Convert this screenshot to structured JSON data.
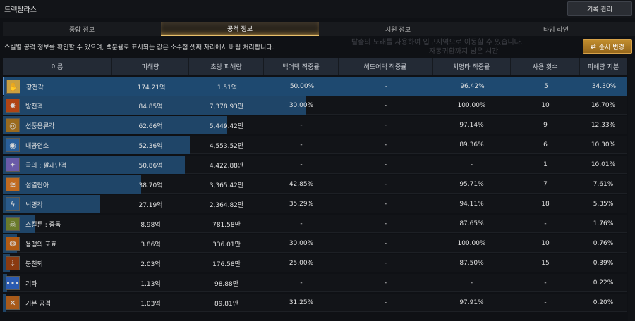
{
  "window": {
    "title": "드렉탈라스",
    "record_button": "기록 관리"
  },
  "tabs": [
    {
      "label": "종합 정보",
      "active": false
    },
    {
      "label": "공격 정보",
      "active": true
    },
    {
      "label": "지원 정보",
      "active": false
    },
    {
      "label": "타임 라인",
      "active": false
    }
  ],
  "info_text": "스킬별 공격 정보를 확인할 수 있으며, 백분율로 표시되는 값은 소수점 셋째 자리에서 버림 처리합니다.",
  "order_button": {
    "label": "순서 변경",
    "icon": "swap-icon"
  },
  "ghost_text": [
    "탈출의 노래를 사용하여 입구지역으로 이동할 수 있습니다.",
    "자동귀환까지 남은 시간"
  ],
  "columns": [
    "이름",
    "피해량",
    "초당 피해량",
    "백어택 적중률",
    "헤드어택 적중률",
    "치명타 적중률",
    "사용 횟수",
    "피해량 지분"
  ],
  "colors": {
    "bar": "#1f4568",
    "highlight_border": "#5c8fcc",
    "accent_gold": "#c08c2d",
    "tab_active_glow": "#e8c06a"
  },
  "rows": [
    {
      "name": "창천각",
      "damage": "174.21억",
      "dps": "1.51억",
      "back": "50.00%",
      "head": "-",
      "crit": "96.42%",
      "uses": "5",
      "share": "34.30%",
      "share_value": 34.3,
      "icon": "kick-icon",
      "icon_bg": "#caa040",
      "icon_glyph": "✋"
    },
    {
      "name": "방천격",
      "damage": "84.85억",
      "dps": "7,378.93만",
      "back": "30.00%",
      "head": "-",
      "crit": "100.00%",
      "uses": "10",
      "share": "16.70%",
      "share_value": 16.7,
      "icon": "fire-strike-icon",
      "icon_bg": "#b04414",
      "icon_glyph": "✸"
    },
    {
      "name": "선풍용류각",
      "damage": "62.66억",
      "dps": "5,449.42만",
      "back": "-",
      "head": "-",
      "crit": "97.14%",
      "uses": "9",
      "share": "12.33%",
      "share_value": 12.33,
      "icon": "whirlwind-icon",
      "icon_bg": "#9a6a1e",
      "icon_glyph": "◎"
    },
    {
      "name": "내공연소",
      "damage": "52.36억",
      "dps": "4,553.52만",
      "back": "-",
      "head": "-",
      "crit": "89.36%",
      "uses": "6",
      "share": "10.30%",
      "share_value": 10.3,
      "icon": "spiral-icon",
      "icon_bg": "#2a5f9a",
      "icon_glyph": "◉"
    },
    {
      "name": "극의 : 팔괘난격",
      "damage": "50.86억",
      "dps": "4,422.88만",
      "back": "-",
      "head": "-",
      "crit": "-",
      "uses": "1",
      "share": "10.01%",
      "share_value": 10.01,
      "icon": "barrage-icon",
      "icon_bg": "#6a5aa8",
      "icon_glyph": "✦"
    },
    {
      "name": "섬열란아",
      "damage": "38.70억",
      "dps": "3,365.42만",
      "back": "42.85%",
      "head": "-",
      "crit": "95.71%",
      "uses": "7",
      "share": "7.61%",
      "share_value": 7.61,
      "icon": "claw-icon",
      "icon_bg": "#c06a20",
      "icon_glyph": "≋"
    },
    {
      "name": "뇌명각",
      "damage": "27.19억",
      "dps": "2,364.82만",
      "back": "35.29%",
      "head": "-",
      "crit": "94.11%",
      "uses": "18",
      "share": "5.35%",
      "share_value": 5.35,
      "icon": "lightning-icon",
      "icon_bg": "#2a5a8a",
      "icon_glyph": "ϟ"
    },
    {
      "name": "스킬룬 : 중독",
      "damage": "8.98억",
      "dps": "781.58만",
      "back": "-",
      "head": "-",
      "crit": "87.65%",
      "uses": "-",
      "share": "1.76%",
      "share_value": 1.76,
      "icon": "poison-icon",
      "icon_bg": "#6a7a2a",
      "icon_glyph": "☠"
    },
    {
      "name": "용맹의 포효",
      "damage": "3.86억",
      "dps": "336.01만",
      "back": "30.00%",
      "head": "-",
      "crit": "100.00%",
      "uses": "10",
      "share": "0.76%",
      "share_value": 0.76,
      "icon": "roar-icon",
      "icon_bg": "#b05a14",
      "icon_glyph": "❂"
    },
    {
      "name": "붕천퇴",
      "damage": "2.03억",
      "dps": "176.58만",
      "back": "25.00%",
      "head": "-",
      "crit": "87.50%",
      "uses": "15",
      "share": "0.39%",
      "share_value": 0.39,
      "icon": "slam-icon",
      "icon_bg": "#8a3a10",
      "icon_glyph": "⇣"
    },
    {
      "name": "기타",
      "damage": "1.13억",
      "dps": "98.88만",
      "back": "-",
      "head": "-",
      "crit": "-",
      "uses": "-",
      "share": "0.22%",
      "share_value": 0.22,
      "icon": "more-icon",
      "icon_bg": "#2a5ab0",
      "icon_glyph": "•••"
    },
    {
      "name": "기본 공격",
      "damage": "1.03억",
      "dps": "89.81만",
      "back": "31.25%",
      "head": "-",
      "crit": "97.91%",
      "uses": "-",
      "share": "0.20%",
      "share_value": 0.2,
      "icon": "crossed-fists-icon",
      "icon_bg": "#a85a1a",
      "icon_glyph": "✕"
    }
  ]
}
